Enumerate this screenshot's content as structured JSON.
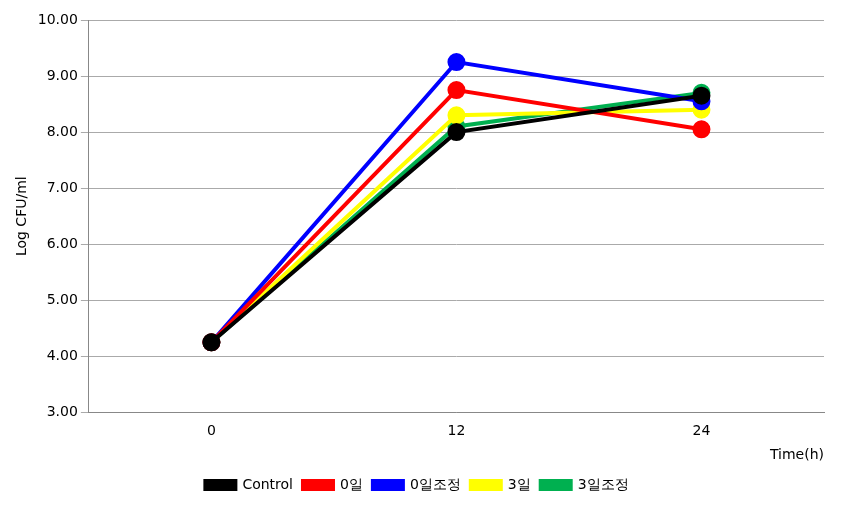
{
  "chart_data": {
    "type": "line",
    "x_label": "Time(h)",
    "y_label": "Log CFU/ml",
    "categories": [
      "0",
      "12",
      "24"
    ],
    "series": [
      {
        "name": "Control",
        "color": "#000000",
        "values": [
          4.25,
          8.0,
          8.65
        ]
      },
      {
        "name": "0일",
        "color": "#ff0000",
        "values": [
          4.25,
          8.75,
          8.05
        ]
      },
      {
        "name": "0일조정",
        "color": "#0000ff",
        "values": [
          4.25,
          9.25,
          8.55
        ]
      },
      {
        "name": "3일",
        "color": "#ffff00",
        "values": [
          4.25,
          8.3,
          8.4
        ]
      },
      {
        "name": "3일조정",
        "color": "#00b050",
        "values": [
          4.25,
          8.1,
          8.7
        ]
      }
    ],
    "ylim": [
      3,
      10
    ],
    "yticks": [
      {
        "value": 3,
        "label": "3.00"
      },
      {
        "value": 4,
        "label": "4.00"
      },
      {
        "value": 5,
        "label": "5.00"
      },
      {
        "value": 6,
        "label": "6.00"
      },
      {
        "value": 7,
        "label": "7.00"
      },
      {
        "value": 8,
        "label": "8.00"
      },
      {
        "value": 9,
        "label": "9.00"
      },
      {
        "value": 10,
        "label": "10.00"
      }
    ],
    "grid": true,
    "legend": "bottom",
    "marker": "circle"
  }
}
